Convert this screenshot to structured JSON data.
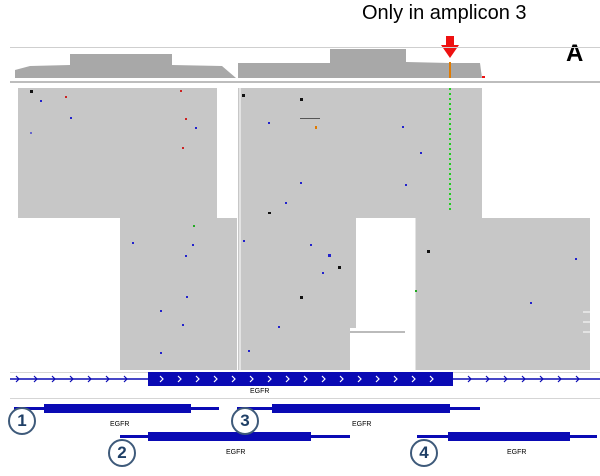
{
  "annotation": {
    "text": "Only in amplicon 3",
    "panel_label": "A"
  },
  "gene_track": {
    "gene_name": "EGFR"
  },
  "amplicons": [
    {
      "number": "1",
      "gene_label": "EGFR"
    },
    {
      "number": "2",
      "gene_label": "EGFR"
    },
    {
      "number": "3",
      "gene_label": "EGFR"
    },
    {
      "number": "4",
      "gene_label": "EGFR"
    }
  ],
  "colors": {
    "read_fill": "#c7c7c7",
    "coverage_fill": "#a8a8a8",
    "gene_blue": "#0a0ab4",
    "variant_green": "#22cc22",
    "arrow_red": "#ee1111",
    "badge_border": "#3e5a7a"
  }
}
